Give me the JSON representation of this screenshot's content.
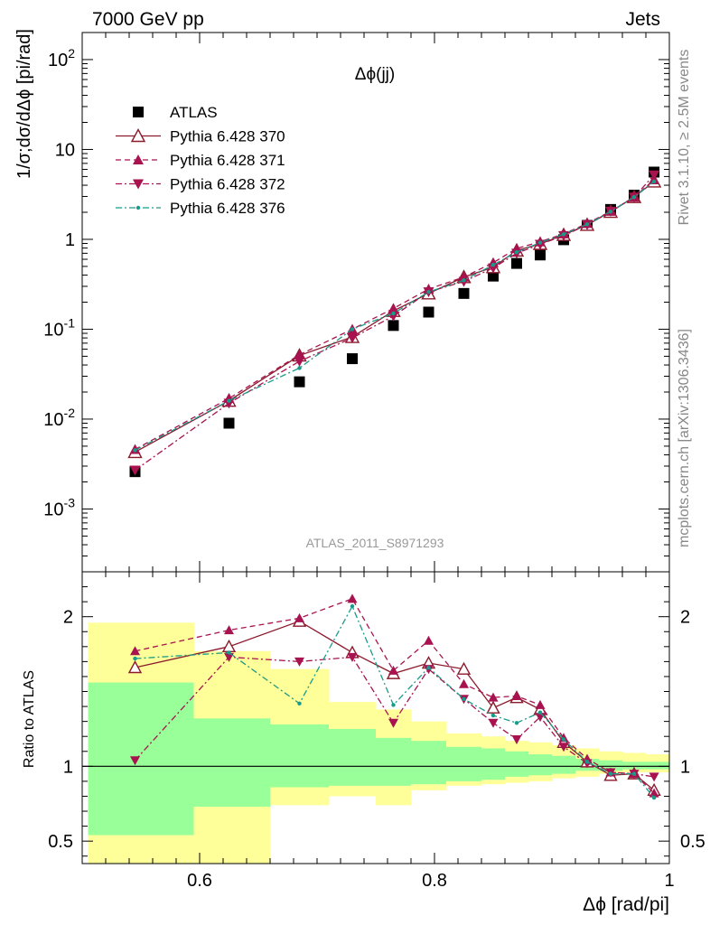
{
  "header": {
    "left": "7000 GeV pp",
    "right": "Jets"
  },
  "side_labels": {
    "rivet": "Rivet 3.1.10, ≥ 2.5M events",
    "mcplots": "mcplots.cern.ch [arXiv:1306.3436]"
  },
  "chart_data": [
    {
      "panel": "main",
      "type": "scatter",
      "title": "Δϕ(jj)",
      "watermark": "ATLAS_2011_S8971293",
      "ylabel": "1/σ;dσ/dΔϕ [pi/rad]",
      "xlabel": "",
      "xlim": [
        0.5,
        1.0
      ],
      "ylim": [
        0.0002,
        200
      ],
      "yscale": "log",
      "yticks": [
        0.001,
        0.01,
        0.1,
        1,
        10,
        100
      ],
      "legend_position": "top-left",
      "x": [
        0.545,
        0.625,
        0.685,
        0.73,
        0.765,
        0.795,
        0.825,
        0.85,
        0.87,
        0.89,
        0.91,
        0.93,
        0.95,
        0.97,
        0.987
      ],
      "series": [
        {
          "name": "ATLAS",
          "marker": "square",
          "color": "#000000",
          "line": "none",
          "values": [
            0.0026,
            0.009,
            0.026,
            0.047,
            0.11,
            0.155,
            0.25,
            0.39,
            0.54,
            0.67,
            0.99,
            1.43,
            2.15,
            3.1,
            5.6
          ]
        },
        {
          "name": "Pythia 6.428 370",
          "marker": "triangle-up-open",
          "color": "#8b1a2b",
          "line": "solid",
          "values": [
            0.0043,
            0.016,
            0.051,
            0.082,
            0.16,
            0.25,
            0.38,
            0.49,
            0.75,
            0.89,
            1.12,
            1.45,
            2.02,
            2.95,
            4.4
          ]
        },
        {
          "name": "Pythia 6.428 371",
          "marker": "triangle-up",
          "color": "#a8124f",
          "line": "dashed",
          "values": [
            0.0046,
            0.017,
            0.052,
            0.1,
            0.17,
            0.28,
            0.38,
            0.55,
            0.79,
            0.94,
            1.15,
            1.5,
            2.05,
            2.95,
            4.6
          ]
        },
        {
          "name": "Pythia 6.428 372",
          "marker": "triangle-down",
          "color": "#a8124f",
          "line": "dashdot",
          "values": [
            0.0027,
            0.015,
            0.044,
            0.08,
            0.14,
            0.26,
            0.34,
            0.48,
            0.7,
            0.88,
            1.1,
            1.45,
            2.05,
            2.95,
            5.2
          ]
        },
        {
          "name": "Pythia 6.428 376",
          "marker": "dot",
          "color": "#1a9a8a",
          "line": "dashdot",
          "values": [
            0.0045,
            0.016,
            0.037,
            0.1,
            0.15,
            0.26,
            0.35,
            0.52,
            0.72,
            0.92,
            1.14,
            1.47,
            2.03,
            2.95,
            4.4
          ]
        }
      ]
    },
    {
      "panel": "ratio",
      "type": "line",
      "ylabel": "Ratio to ATLAS",
      "xlabel": "Δϕ [rad/pi]",
      "xlim": [
        0.5,
        1.0
      ],
      "ylim": [
        0.35,
        2.3
      ],
      "xticks": [
        0.6,
        0.8,
        1
      ],
      "yticks": [
        0.5,
        1,
        2
      ],
      "reference_line": 1,
      "uncertainty_bands": {
        "bin_edges": [
          0.505,
          0.595,
          0.66,
          0.71,
          0.75,
          0.78,
          0.81,
          0.84,
          0.86,
          0.88,
          0.9,
          0.92,
          0.94,
          0.96,
          0.98,
          1.0
        ],
        "yellow_low": [
          0.35,
          0.35,
          0.74,
          0.8,
          0.74,
          0.84,
          0.87,
          0.88,
          0.89,
          0.9,
          0.92,
          0.93,
          0.95,
          0.96,
          0.96
        ],
        "yellow_high": [
          1.96,
          1.77,
          1.65,
          1.43,
          1.38,
          1.3,
          1.22,
          1.2,
          1.17,
          1.16,
          1.14,
          1.12,
          1.1,
          1.09,
          1.08
        ],
        "green_low": [
          0.54,
          0.73,
          0.86,
          0.87,
          0.87,
          0.88,
          0.9,
          0.91,
          0.93,
          0.94,
          0.95,
          0.97,
          0.97,
          0.98,
          0.98
        ],
        "green_high": [
          1.56,
          1.32,
          1.28,
          1.25,
          1.19,
          1.17,
          1.13,
          1.12,
          1.1,
          1.08,
          1.07,
          1.05,
          1.04,
          1.03,
          1.03
        ]
      },
      "x": [
        0.545,
        0.625,
        0.685,
        0.73,
        0.765,
        0.795,
        0.825,
        0.85,
        0.87,
        0.89,
        0.91,
        0.93,
        0.95,
        0.97,
        0.987
      ],
      "series": [
        {
          "name": "Pythia 6.428 370",
          "marker": "triangle-up-open",
          "color": "#8b1a2b",
          "line": "solid",
          "values": [
            1.66,
            1.8,
            1.97,
            1.76,
            1.62,
            1.69,
            1.65,
            1.39,
            1.46,
            1.38,
            1.16,
            1.03,
            0.94,
            0.95,
            0.84
          ]
        },
        {
          "name": "Pythia 6.428 371",
          "marker": "triangle-up",
          "color": "#a8124f",
          "line": "dashed",
          "values": [
            1.77,
            1.91,
            1.99,
            2.12,
            1.64,
            1.84,
            1.55,
            1.46,
            1.47,
            1.41,
            1.19,
            1.05,
            0.96,
            0.95,
            0.82
          ]
        },
        {
          "name": "Pythia 6.428 372",
          "marker": "triangle-down",
          "color": "#a8124f",
          "line": "dashdot",
          "values": [
            1.04,
            1.73,
            1.7,
            1.73,
            1.29,
            1.65,
            1.45,
            1.29,
            1.18,
            1.33,
            1.13,
            1.02,
            0.96,
            0.95,
            0.93
          ]
        },
        {
          "name": "Pythia 6.428 376",
          "marker": "dot",
          "color": "#1a9a8a",
          "line": "dashdot",
          "values": [
            1.72,
            1.76,
            1.42,
            2.07,
            1.41,
            1.66,
            1.45,
            1.34,
            1.29,
            1.36,
            1.18,
            1.03,
            0.95,
            0.95,
            0.79
          ]
        }
      ]
    }
  ]
}
